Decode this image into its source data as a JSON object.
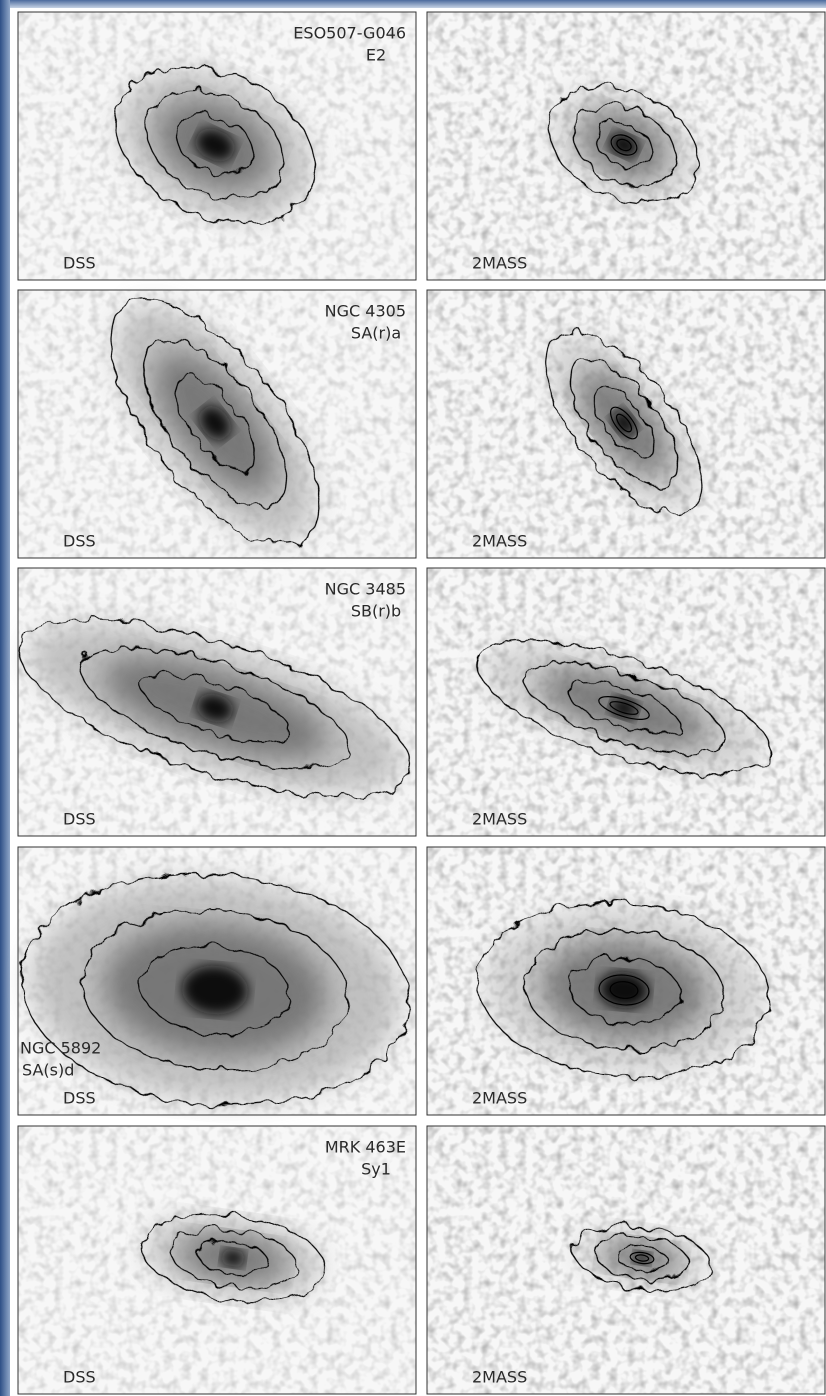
{
  "panels": [
    {
      "name": "ESO507-G046",
      "type": "E2",
      "left_label": "DSS",
      "right_label": "2MASS"
    },
    {
      "name": "NGC 4305",
      "type": "SA(r)a",
      "left_label": "DSS",
      "right_label": "2MASS"
    },
    {
      "name": "NGC 3485",
      "type": "SB(r)b",
      "left_label": "DSS",
      "right_label": "2MASS"
    },
    {
      "name": "NGC 5892",
      "type": "SA(s)d",
      "left_label": "DSS",
      "right_label": "2MASS"
    },
    {
      "name": "MRK 463E",
      "type": "Sy1",
      "left_label": "DSS",
      "right_label": "2MASS"
    }
  ]
}
